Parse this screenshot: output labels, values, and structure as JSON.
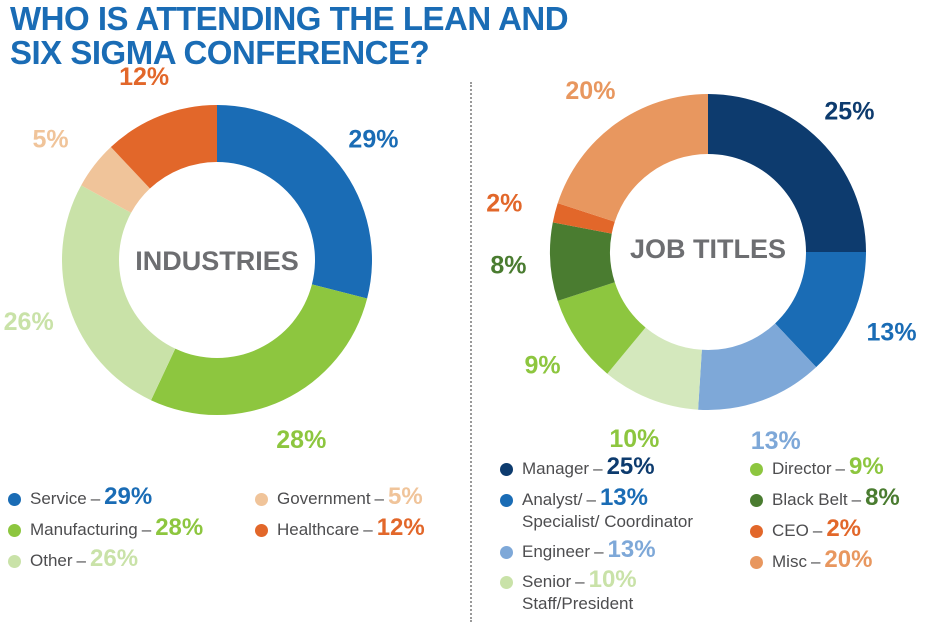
{
  "title_line1": "WHO IS ATTENDING THE LEAN AND",
  "title_line2": "SIX SIGMA CONFERENCE?",
  "chart_data": [
    {
      "type": "pie",
      "title": "INDUSTRIES",
      "labels": [
        "Service",
        "Manufacturing",
        "Other",
        "Government",
        "Healthcare"
      ],
      "values": [
        29,
        28,
        26,
        5,
        12
      ],
      "slice_order_clockwise_from_top": [
        "Service",
        "Manufacturing",
        "Other",
        "Government",
        "Healthcare"
      ],
      "value_labels": [
        "29%",
        "28%",
        "26%",
        "5%",
        "12%"
      ],
      "colors": [
        "#1a6cb5",
        "#8dc63f",
        "#c9e2a8",
        "#f0c49a",
        "#e2672a"
      ],
      "label_colors": [
        "#1a6cb5",
        "#8dc63f",
        "#c9e2a8",
        "#f0c49a",
        "#e2672a"
      ],
      "legend": [
        {
          "name": "Service",
          "value": "29%",
          "color": "#1a6cb5"
        },
        {
          "name": "Manufacturing",
          "value": "28%",
          "color": "#8dc63f"
        },
        {
          "name": "Other",
          "value": "26%",
          "color": "#c9e2a8"
        },
        {
          "name": "Government",
          "value": "5%",
          "color": "#f0c49a"
        },
        {
          "name": "Healthcare",
          "value": "12%",
          "color": "#e2672a"
        }
      ]
    },
    {
      "type": "pie",
      "title": "JOB TITLES",
      "labels": [
        "Manager",
        "Analyst/ Specialist/ Coordinator",
        "Engineer",
        "Senior Staff/President",
        "Director",
        "Black Belt",
        "CEO",
        "Misc"
      ],
      "values": [
        25,
        13,
        13,
        10,
        9,
        8,
        2,
        20
      ],
      "value_labels": [
        "25%",
        "13%",
        "13%",
        "10%",
        "9%",
        "8%",
        "2%",
        "20%"
      ],
      "colors": [
        "#0d3b6e",
        "#1a6cb5",
        "#7ea8d8",
        "#d4e8bd",
        "#8dc63f",
        "#4a7c30",
        "#e2672a",
        "#e8975f"
      ],
      "label_colors": [
        "#0d3b6e",
        "#1a6cb5",
        "#7ea8d8",
        "#8dc63f",
        "#8dc63f",
        "#4a7c30",
        "#e2672a",
        "#e8975f"
      ],
      "legend": [
        {
          "name": "Manager",
          "value": "25%",
          "color": "#0d3b6e"
        },
        {
          "name": "Analyst/",
          "name_line2": "Specialist/ Coordinator",
          "value": "13%",
          "color": "#1a6cb5"
        },
        {
          "name": "Engineer",
          "value": "13%",
          "color": "#7ea8d8"
        },
        {
          "name": "Senior",
          "name_line2": "Staff/President",
          "value": "10%",
          "color": "#c9e2a8"
        },
        {
          "name": "Director",
          "value": "9%",
          "color": "#8dc63f"
        },
        {
          "name": "Black Belt",
          "value": "8%",
          "color": "#4a7c30"
        },
        {
          "name": "CEO",
          "value": "2%",
          "color": "#e2672a"
        },
        {
          "name": "Misc",
          "value": "20%",
          "color": "#e8975f"
        }
      ]
    }
  ],
  "legend_dash": "–"
}
